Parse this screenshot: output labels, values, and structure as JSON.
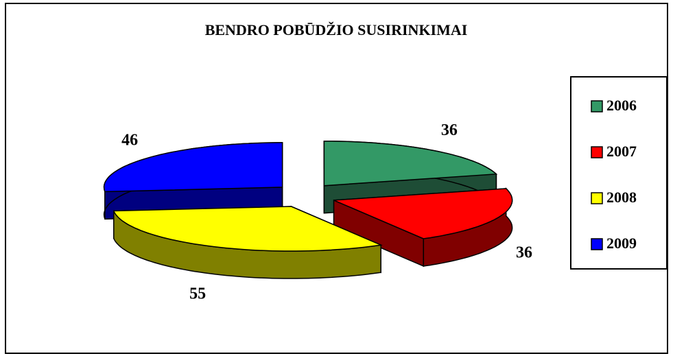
{
  "chart_data": {
    "type": "pie",
    "title": "BENDRO POBŪDŽIO SUSIRINKIMAI",
    "categories": [
      "2006",
      "2007",
      "2008",
      "2009"
    ],
    "values": [
      36,
      36,
      55,
      46
    ],
    "colors": [
      "#339966",
      "#ff0000",
      "#ffff00",
      "#0000ff"
    ],
    "side_colors": [
      "#1e4d36",
      "#800000",
      "#808000",
      "#000080"
    ],
    "legend": "right"
  }
}
